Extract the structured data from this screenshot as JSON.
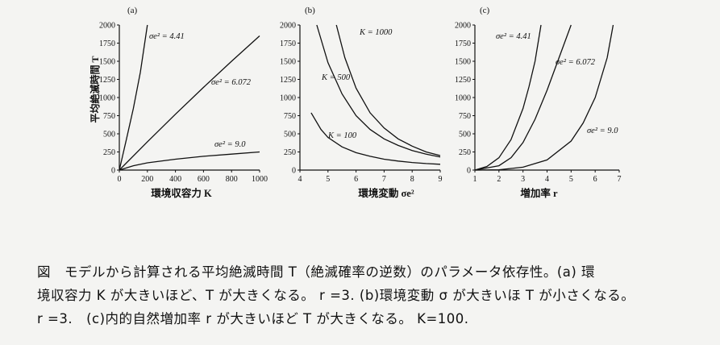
{
  "chart_data": [
    {
      "type": "line",
      "panel_label": "(a)",
      "xlabel": "環境収容力 K",
      "ylabel": "平均絶滅時間 T",
      "xlim": [
        0,
        1000
      ],
      "ylim": [
        0,
        2000
      ],
      "xticks": [
        "0",
        "200",
        "400",
        "600",
        "800",
        "1000"
      ],
      "yticks": [
        "0",
        "250",
        "500",
        "750",
        "1000",
        "1250",
        "1500",
        "1750",
        "2000"
      ],
      "series": [
        {
          "name": "σe² = 4.41",
          "x": [
            0,
            50,
            100,
            150,
            200
          ],
          "y": [
            0,
            420,
            850,
            1350,
            2000
          ]
        },
        {
          "name": "σe² = 6.072",
          "x": [
            0,
            200,
            400,
            600,
            800,
            1000
          ],
          "y": [
            0,
            390,
            770,
            1140,
            1500,
            1850
          ]
        },
        {
          "name": "σe² = 9.0",
          "x": [
            0,
            100,
            200,
            400,
            600,
            800,
            1000
          ],
          "y": [
            0,
            60,
            100,
            150,
            190,
            220,
            250
          ]
        }
      ]
    },
    {
      "type": "line",
      "panel_label": "(b)",
      "xlabel": "環境変動 σe²",
      "ylabel": "",
      "xlim": [
        4,
        9
      ],
      "ylim": [
        0,
        2000
      ],
      "xticks": [
        "4",
        "5",
        "6",
        "7",
        "8",
        "9"
      ],
      "yticks": [
        "0",
        "250",
        "500",
        "750",
        "1000",
        "1250",
        "1500",
        "1750",
        "2000"
      ],
      "series": [
        {
          "name": "K = 1000",
          "x": [
            5.3,
            5.6,
            6,
            6.5,
            7,
            7.5,
            8,
            8.5,
            9
          ],
          "y": [
            2000,
            1550,
            1130,
            790,
            580,
            430,
            330,
            250,
            200
          ]
        },
        {
          "name": "K = 500",
          "x": [
            4.6,
            5,
            5.5,
            6,
            6.5,
            7,
            7.5,
            8,
            8.5,
            9
          ],
          "y": [
            2000,
            1480,
            1050,
            750,
            560,
            430,
            340,
            270,
            220,
            180
          ]
        },
        {
          "name": "K = 100",
          "x": [
            4.4,
            4.75,
            5,
            5.5,
            6,
            6.5,
            7,
            7.5,
            8,
            8.5,
            9
          ],
          "y": [
            790,
            560,
            450,
            320,
            240,
            190,
            150,
            125,
            105,
            90,
            80
          ]
        }
      ]
    },
    {
      "type": "line",
      "panel_label": "(c)",
      "xlabel": "増加率 r",
      "ylabel": "",
      "xlim": [
        1,
        7
      ],
      "ylim": [
        0,
        2000
      ],
      "xticks": [
        "1",
        "2",
        "3",
        "4",
        "5",
        "6",
        "7"
      ],
      "yticks": [
        "0",
        "250",
        "500",
        "750",
        "1000",
        "1250",
        "1500",
        "1750",
        "2000"
      ],
      "series": [
        {
          "name": "σe² = 4.41",
          "x": [
            1,
            1.5,
            2,
            2.5,
            3,
            3.25,
            3.5,
            3.75
          ],
          "y": [
            0,
            50,
            170,
            420,
            850,
            1150,
            1500,
            2000
          ]
        },
        {
          "name": "σe² = 6.072",
          "x": [
            1,
            2,
            2.5,
            3,
            3.5,
            4,
            4.5,
            5
          ],
          "y": [
            0,
            60,
            170,
            380,
            700,
            1100,
            1550,
            2000
          ]
        },
        {
          "name": "σe² = 9.0",
          "x": [
            1,
            2,
            3,
            4,
            5,
            5.5,
            6,
            6.5,
            6.75
          ],
          "y": [
            0,
            5,
            40,
            140,
            400,
            650,
            1000,
            1550,
            2000
          ]
        }
      ]
    }
  ],
  "caption": [
    "図　モデルから計算される平均絶滅時間 T（絶滅確率の逆数）のパラメータ依存性。(a) 環",
    "境収容力 K が大きいほど、T が大きくなる。 r =3. (b)環境変動 σ が大きいほ T が小さくなる。",
    "r =3.　(c)内的自然増加率 r が大きいほど T が大きくなる。 K=100."
  ]
}
